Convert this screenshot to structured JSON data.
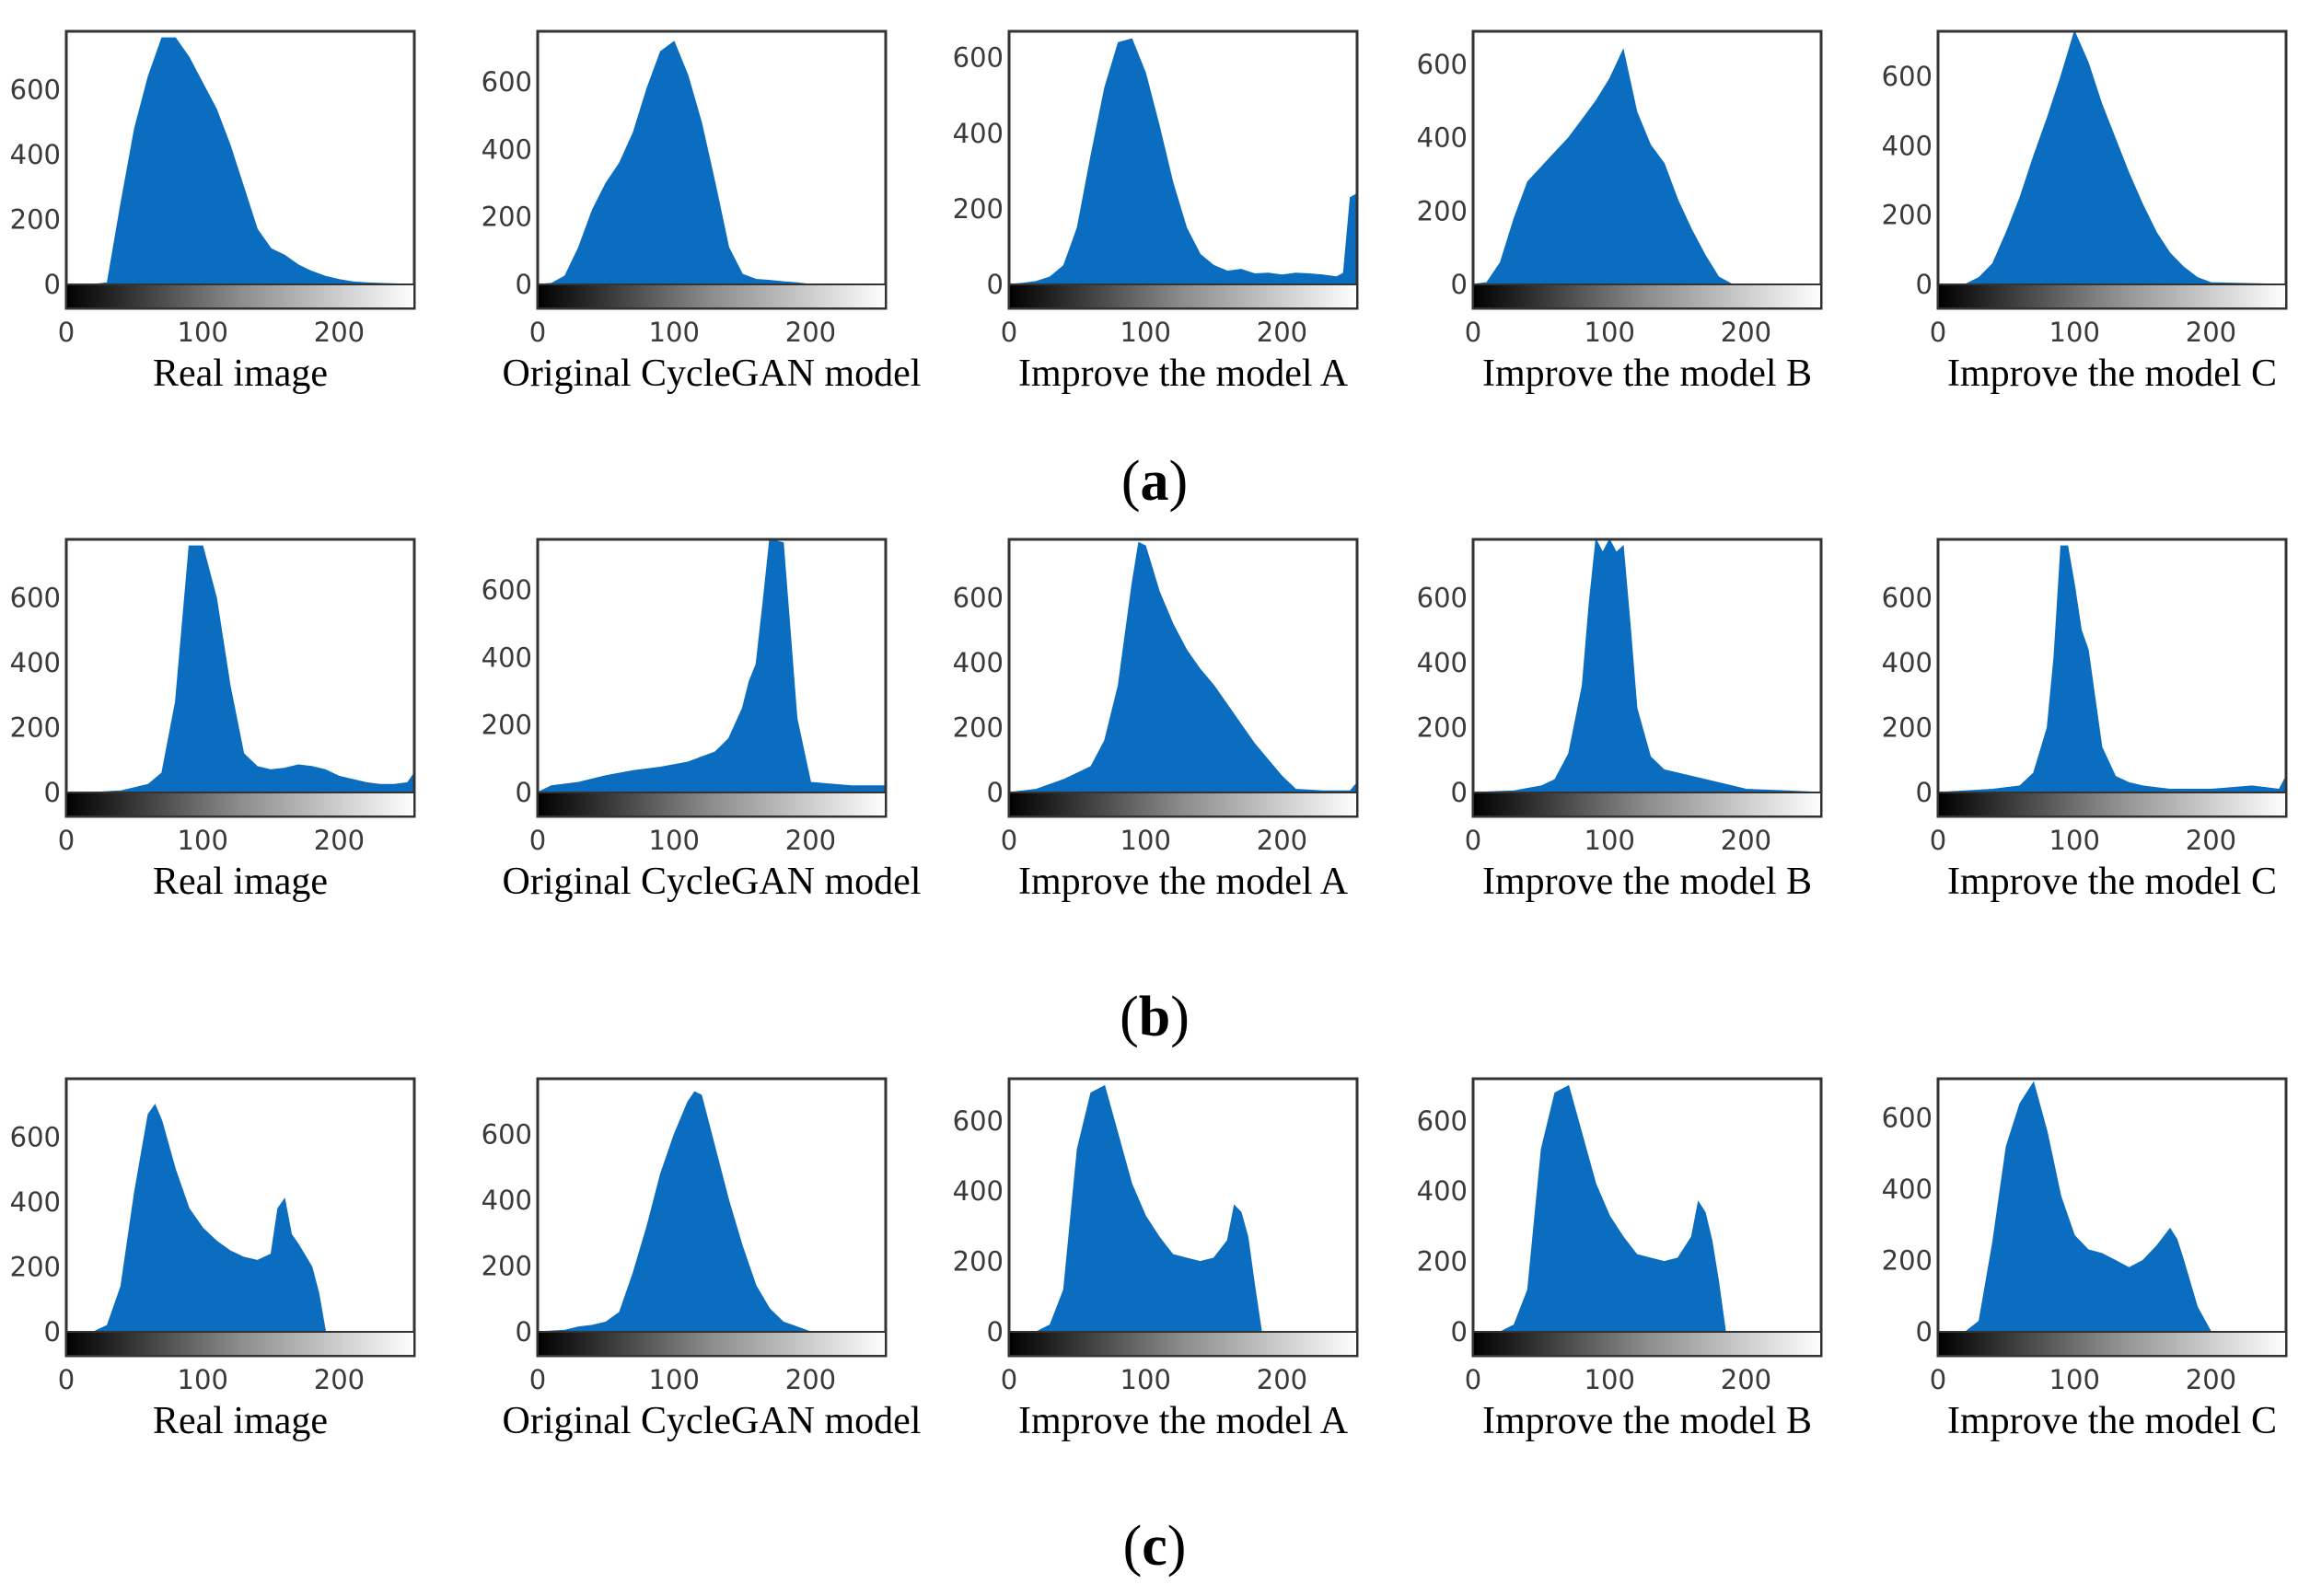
{
  "figure": {
    "bar_color": "#0b6dbf",
    "frame_color": "#333333",
    "rows": [
      {
        "label_letter": "a",
        "label_open": "(",
        "label_close": ")"
      },
      {
        "label_letter": "b",
        "label_open": "(",
        "label_close": ")"
      },
      {
        "label_letter": "c",
        "label_open": "(",
        "label_close": ")"
      }
    ]
  },
  "chart_data": [
    {
      "type": "area",
      "row": "a",
      "caption": "Real image",
      "xlim": [
        0,
        255
      ],
      "ylim": [
        0,
        780
      ],
      "xticks": [
        "0",
        "100",
        "200"
      ],
      "yticks": [
        "0",
        "200",
        "400",
        "600"
      ],
      "x": [
        0,
        20,
        30,
        40,
        50,
        60,
        70,
        80,
        90,
        100,
        110,
        120,
        130,
        140,
        150,
        160,
        170,
        180,
        190,
        200,
        210,
        220,
        230,
        255
      ],
      "y": [
        0,
        0,
        5,
        250,
        480,
        640,
        760,
        760,
        700,
        620,
        540,
        430,
        300,
        170,
        110,
        90,
        60,
        40,
        25,
        15,
        8,
        5,
        3,
        0
      ]
    },
    {
      "type": "area",
      "row": "a",
      "caption": "Original CycleGAN model",
      "xlim": [
        0,
        255
      ],
      "ylim": [
        0,
        750
      ],
      "xticks": [
        "0",
        "100",
        "200"
      ],
      "yticks": [
        "0",
        "200",
        "400",
        "600"
      ],
      "x": [
        0,
        10,
        20,
        30,
        40,
        50,
        60,
        70,
        80,
        90,
        100,
        110,
        120,
        130,
        140,
        150,
        160,
        170,
        180,
        190,
        200,
        255
      ],
      "y": [
        0,
        3,
        25,
        110,
        220,
        300,
        360,
        450,
        580,
        690,
        720,
        620,
        480,
        300,
        110,
        30,
        15,
        12,
        8,
        5,
        0,
        0
      ]
    },
    {
      "type": "area",
      "row": "a",
      "caption": "Improve the model  A",
      "xlim": [
        0,
        255
      ],
      "ylim": [
        0,
        670
      ],
      "xticks": [
        "0",
        "100",
        "200"
      ],
      "yticks": [
        "0",
        "200",
        "400",
        "600"
      ],
      "x": [
        0,
        10,
        20,
        30,
        40,
        50,
        60,
        70,
        80,
        90,
        100,
        110,
        120,
        130,
        140,
        150,
        160,
        170,
        180,
        190,
        200,
        210,
        220,
        230,
        240,
        245,
        250,
        255
      ],
      "y": [
        0,
        3,
        8,
        20,
        50,
        150,
        340,
        520,
        640,
        650,
        560,
        420,
        270,
        150,
        80,
        50,
        35,
        40,
        28,
        30,
        25,
        30,
        28,
        25,
        20,
        30,
        230,
        240
      ]
    },
    {
      "type": "area",
      "row": "a",
      "caption": "Improve the model  B",
      "xlim": [
        0,
        255
      ],
      "ylim": [
        0,
        690
      ],
      "xticks": [
        "0",
        "100",
        "200"
      ],
      "yticks": [
        "0",
        "200",
        "400",
        "600"
      ],
      "x": [
        0,
        10,
        20,
        30,
        40,
        50,
        60,
        70,
        80,
        90,
        100,
        110,
        120,
        130,
        140,
        150,
        160,
        170,
        180,
        190,
        255
      ],
      "y": [
        0,
        5,
        60,
        180,
        280,
        320,
        360,
        400,
        450,
        500,
        560,
        640,
        470,
        380,
        330,
        230,
        150,
        80,
        20,
        0,
        0
      ]
    },
    {
      "type": "area",
      "row": "a",
      "caption": "Improve the model C",
      "xlim": [
        0,
        255
      ],
      "ylim": [
        0,
        730
      ],
      "xticks": [
        "0",
        "100",
        "200"
      ],
      "yticks": [
        "0",
        "200",
        "400",
        "600"
      ],
      "x": [
        0,
        20,
        30,
        40,
        50,
        60,
        70,
        80,
        90,
        100,
        110,
        120,
        130,
        140,
        150,
        160,
        170,
        180,
        190,
        200,
        255
      ],
      "y": [
        0,
        0,
        20,
        60,
        150,
        250,
        370,
        480,
        600,
        730,
        640,
        520,
        420,
        320,
        230,
        150,
        90,
        50,
        20,
        5,
        0
      ]
    },
    {
      "type": "area",
      "row": "b",
      "caption": "Real image",
      "xlim": [
        0,
        255
      ],
      "ylim": [
        0,
        780
      ],
      "xticks": [
        "0",
        "100",
        "200"
      ],
      "yticks": [
        "0",
        "200",
        "400",
        "600"
      ],
      "x": [
        0,
        20,
        40,
        50,
        60,
        70,
        80,
        90,
        100,
        110,
        120,
        130,
        140,
        150,
        160,
        170,
        180,
        190,
        200,
        210,
        220,
        230,
        240,
        250,
        255
      ],
      "y": [
        0,
        0,
        5,
        15,
        25,
        60,
        280,
        760,
        760,
        600,
        330,
        120,
        80,
        70,
        75,
        85,
        80,
        70,
        50,
        40,
        30,
        25,
        25,
        30,
        60
      ]
    },
    {
      "type": "area",
      "row": "b",
      "caption": "Original CycleGAN model",
      "xlim": [
        0,
        255
      ],
      "ylim": [
        0,
        750
      ],
      "xticks": [
        "0",
        "100",
        "200"
      ],
      "yticks": [
        "0",
        "200",
        "400",
        "600"
      ],
      "x": [
        0,
        10,
        30,
        50,
        70,
        90,
        110,
        130,
        140,
        150,
        155,
        160,
        165,
        170,
        180,
        190,
        200,
        230,
        255
      ],
      "y": [
        0,
        20,
        30,
        50,
        65,
        75,
        90,
        120,
        160,
        250,
        330,
        380,
        560,
        750,
        740,
        220,
        30,
        20,
        20
      ]
    },
    {
      "type": "area",
      "row": "b",
      "caption": "Improve the model  A",
      "xlim": [
        0,
        255
      ],
      "ylim": [
        0,
        780
      ],
      "xticks": [
        "0",
        "100",
        "200"
      ],
      "yticks": [
        "0",
        "200",
        "400",
        "600"
      ],
      "x": [
        0,
        20,
        40,
        60,
        70,
        80,
        90,
        95,
        100,
        110,
        120,
        130,
        140,
        150,
        160,
        170,
        180,
        190,
        200,
        210,
        230,
        250,
        255
      ],
      "y": [
        0,
        10,
        40,
        80,
        160,
        330,
        640,
        770,
        760,
        620,
        520,
        440,
        380,
        330,
        270,
        210,
        150,
        100,
        50,
        10,
        5,
        5,
        30
      ]
    },
    {
      "type": "area",
      "row": "b",
      "caption": "Improve the model  B",
      "xlim": [
        0,
        255
      ],
      "ylim": [
        0,
        780
      ],
      "xticks": [
        "0",
        "100",
        "200"
      ],
      "yticks": [
        "0",
        "200",
        "400",
        "600"
      ],
      "x": [
        0,
        30,
        50,
        60,
        70,
        80,
        85,
        90,
        95,
        100,
        105,
        110,
        115,
        120,
        130,
        140,
        150,
        160,
        170,
        180,
        190,
        200,
        230,
        255
      ],
      "y": [
        0,
        5,
        20,
        40,
        120,
        330,
        580,
        780,
        740,
        780,
        740,
        760,
        520,
        260,
        110,
        70,
        60,
        50,
        40,
        30,
        20,
        10,
        5,
        0
      ]
    },
    {
      "type": "area",
      "row": "b",
      "caption": "Improve the model C",
      "xlim": [
        0,
        255
      ],
      "ylim": [
        0,
        780
      ],
      "xticks": [
        "0",
        "100",
        "200"
      ],
      "yticks": [
        "0",
        "200",
        "400",
        "600"
      ],
      "x": [
        0,
        20,
        40,
        60,
        70,
        80,
        85,
        90,
        95,
        100,
        105,
        110,
        120,
        130,
        140,
        150,
        160,
        170,
        180,
        200,
        230,
        250,
        255
      ],
      "y": [
        0,
        5,
        10,
        20,
        60,
        200,
        420,
        760,
        760,
        640,
        500,
        440,
        140,
        50,
        30,
        20,
        15,
        10,
        10,
        10,
        20,
        10,
        50
      ]
    },
    {
      "type": "area",
      "row": "c",
      "caption": "Real image",
      "xlim": [
        0,
        255
      ],
      "ylim": [
        0,
        780
      ],
      "xticks": [
        "0",
        "100",
        "200"
      ],
      "yticks": [
        "0",
        "200",
        "400",
        "600"
      ],
      "x": [
        0,
        20,
        30,
        40,
        50,
        60,
        65,
        70,
        80,
        90,
        100,
        110,
        120,
        130,
        140,
        150,
        155,
        160,
        165,
        170,
        180,
        185,
        190,
        255
      ],
      "y": [
        0,
        0,
        20,
        140,
        430,
        670,
        700,
        650,
        500,
        380,
        320,
        280,
        250,
        230,
        220,
        240,
        380,
        410,
        300,
        270,
        200,
        120,
        0,
        0
      ]
    },
    {
      "type": "area",
      "row": "c",
      "caption": "Original CycleGAN model",
      "xlim": [
        0,
        255
      ],
      "ylim": [
        0,
        770
      ],
      "xticks": [
        "0",
        "100",
        "200"
      ],
      "yticks": [
        "0",
        "200",
        "400",
        "600"
      ],
      "x": [
        0,
        20,
        30,
        40,
        50,
        60,
        70,
        80,
        90,
        100,
        110,
        115,
        120,
        130,
        140,
        150,
        160,
        170,
        180,
        190,
        200,
        255
      ],
      "y": [
        0,
        5,
        15,
        20,
        30,
        60,
        180,
        320,
        480,
        600,
        700,
        730,
        720,
        560,
        400,
        260,
        140,
        70,
        30,
        15,
        0,
        0
      ]
    },
    {
      "type": "area",
      "row": "c",
      "caption": "Improve the model  A",
      "xlim": [
        0,
        255
      ],
      "ylim": [
        0,
        720
      ],
      "xticks": [
        "0",
        "100",
        "200"
      ],
      "yticks": [
        "0",
        "200",
        "400",
        "600"
      ],
      "x": [
        0,
        20,
        30,
        40,
        50,
        60,
        70,
        80,
        90,
        100,
        110,
        120,
        130,
        140,
        150,
        160,
        165,
        170,
        175,
        180,
        185,
        255
      ],
      "y": [
        0,
        0,
        20,
        120,
        520,
        680,
        700,
        560,
        420,
        330,
        270,
        220,
        210,
        200,
        210,
        260,
        360,
        340,
        270,
        130,
        0,
        0
      ]
    },
    {
      "type": "area",
      "row": "c",
      "caption": "Improve the model  B",
      "xlim": [
        0,
        255
      ],
      "ylim": [
        0,
        720
      ],
      "xticks": [
        "0",
        "100",
        "200"
      ],
      "yticks": [
        "0",
        "200",
        "400",
        "600"
      ],
      "x": [
        0,
        20,
        30,
        40,
        50,
        60,
        70,
        80,
        90,
        100,
        110,
        120,
        130,
        140,
        150,
        160,
        165,
        170,
        175,
        180,
        185,
        255
      ],
      "y": [
        0,
        0,
        20,
        120,
        520,
        680,
        700,
        560,
        420,
        330,
        270,
        220,
        210,
        200,
        210,
        270,
        370,
        340,
        260,
        140,
        0,
        0
      ]
    },
    {
      "type": "area",
      "row": "c",
      "caption": "Improve the model C",
      "xlim": [
        0,
        255
      ],
      "ylim": [
        0,
        710
      ],
      "xticks": [
        "0",
        "100",
        "200"
      ],
      "yticks": [
        "0",
        "200",
        "400",
        "600"
      ],
      "x": [
        0,
        20,
        30,
        40,
        50,
        60,
        70,
        80,
        90,
        100,
        110,
        120,
        130,
        140,
        150,
        160,
        170,
        175,
        180,
        190,
        200,
        255
      ],
      "y": [
        0,
        0,
        30,
        250,
        520,
        640,
        700,
        560,
        380,
        270,
        230,
        220,
        200,
        180,
        200,
        240,
        290,
        260,
        200,
        70,
        0,
        0
      ]
    }
  ]
}
